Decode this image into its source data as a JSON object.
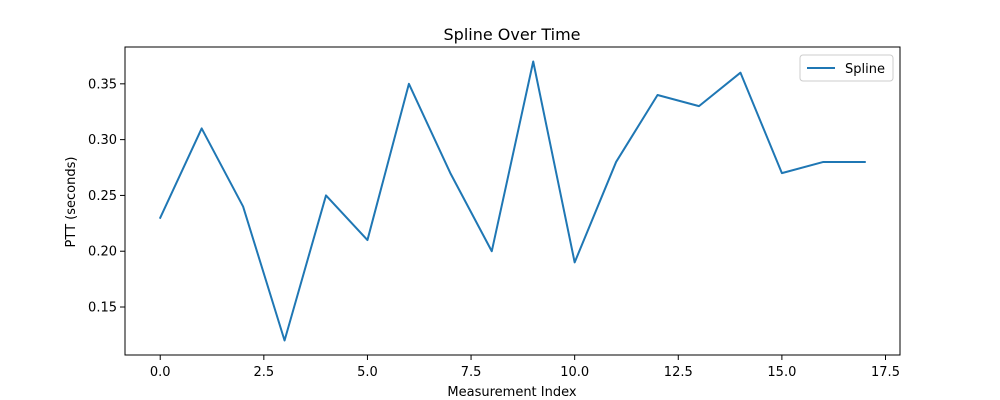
{
  "chart_data": {
    "type": "line",
    "title": "Spline Over Time",
    "xlabel": "Measurement Index",
    "ylabel": "PTT (seconds)",
    "xlim": [
      -0.85,
      17.85
    ],
    "ylim": [
      0.107,
      0.383
    ],
    "xticks": [
      0.0,
      2.5,
      5.0,
      7.5,
      10.0,
      12.5,
      15.0,
      17.5
    ],
    "xtick_labels": [
      "0.0",
      "2.5",
      "5.0",
      "7.5",
      "10.0",
      "12.5",
      "15.0",
      "17.5"
    ],
    "yticks": [
      0.15,
      0.2,
      0.25,
      0.3,
      0.35
    ],
    "ytick_labels": [
      "0.15",
      "0.20",
      "0.25",
      "0.30",
      "0.35"
    ],
    "grid": false,
    "legend_position": "top-right",
    "series": [
      {
        "name": "Spline",
        "color": "#1f77b4",
        "x": [
          0,
          1,
          2,
          3,
          4,
          5,
          6,
          7,
          8,
          9,
          10,
          11,
          12,
          13,
          14,
          15,
          16,
          17
        ],
        "y": [
          0.23,
          0.31,
          0.24,
          0.12,
          0.25,
          0.21,
          0.35,
          0.27,
          0.2,
          0.37,
          0.19,
          0.28,
          0.34,
          0.33,
          0.36,
          0.27,
          0.28,
          0.28
        ]
      }
    ]
  }
}
